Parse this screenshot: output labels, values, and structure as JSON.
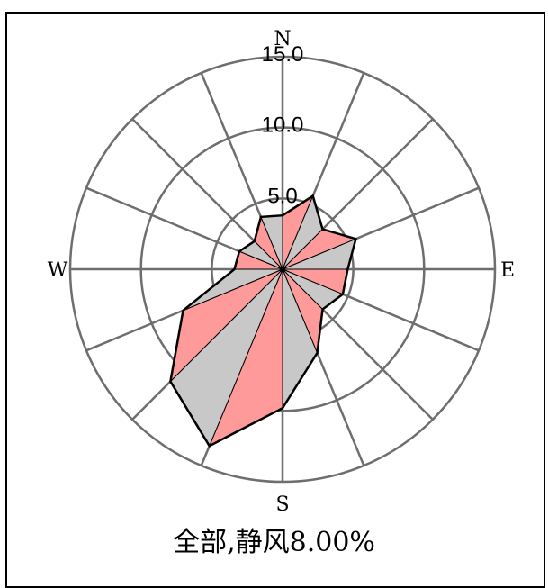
{
  "chart_data": {
    "type": "wind-rose",
    "directions": [
      "N",
      "NNE",
      "NE",
      "ENE",
      "E",
      "ESE",
      "SE",
      "SSE",
      "S",
      "SSW",
      "SW",
      "WSW",
      "W",
      "WNW",
      "NW",
      "NNW"
    ],
    "values": [
      3.8,
      5.6,
      4.0,
      5.6,
      4.6,
      4.6,
      4.0,
      6.4,
      9.8,
      13.5,
      11.2,
      7.6,
      3.4,
      3.3,
      2.8,
      4.0
    ],
    "rmax": 15.0,
    "rings": [
      5.0,
      10.0,
      15.0
    ],
    "ring_labels": [
      "5.0",
      "10.0",
      "15.0"
    ],
    "compass": {
      "n": "N",
      "e": "E",
      "s": "S",
      "w": "W"
    },
    "caption": "全部,静风8.00%",
    "colors": {
      "alt_a": "#ff9a9a",
      "alt_b": "#c8c8c8",
      "grid": "#6e6e6e",
      "outline": "#000000"
    }
  }
}
